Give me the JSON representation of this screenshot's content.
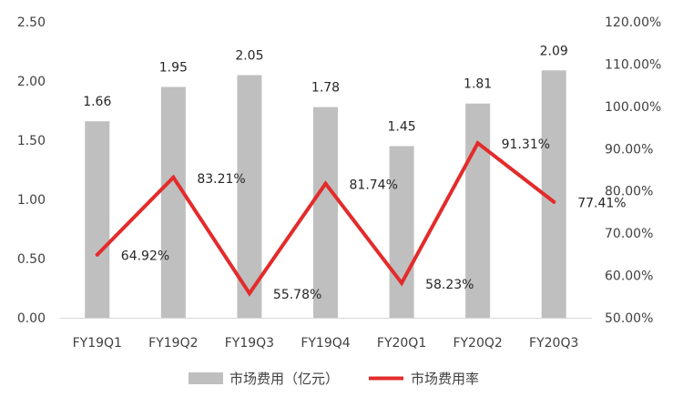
{
  "chart_data": {
    "type": "bar",
    "categories": [
      "FY19Q1",
      "FY19Q2",
      "FY19Q3",
      "FY19Q4",
      "FY20Q1",
      "FY20Q2",
      "FY20Q3"
    ],
    "series": [
      {
        "name": "市场费用（亿元）",
        "type": "bar",
        "axis": "left",
        "values": [
          1.66,
          1.95,
          2.05,
          1.78,
          1.45,
          1.81,
          2.09
        ],
        "labels": [
          "1.66",
          "1.95",
          "2.05",
          "1.78",
          "1.45",
          "1.81",
          "2.09"
        ],
        "color": "#bfbfbf"
      },
      {
        "name": "市场费用率",
        "type": "line",
        "axis": "right",
        "values": [
          64.92,
          83.21,
          55.78,
          81.74,
          58.23,
          91.31,
          77.41
        ],
        "labels": [
          "64.92%",
          "83.21%",
          "55.78%",
          "81.74%",
          "58.23%",
          "91.31%",
          "77.41%"
        ],
        "color": "#e32b2b"
      }
    ],
    "y_left": {
      "range": [
        0,
        2.5
      ],
      "ticks": [
        0,
        0.5,
        1.0,
        1.5,
        2.0,
        2.5
      ],
      "tick_labels": [
        "0.00",
        "0.50",
        "1.00",
        "1.50",
        "2.00",
        "2.50"
      ]
    },
    "y_right": {
      "range": [
        50,
        120
      ],
      "ticks": [
        50,
        60,
        70,
        80,
        90,
        100,
        110,
        120
      ],
      "tick_labels": [
        "50.00%",
        "60.00%",
        "70.00%",
        "80.00%",
        "90.00%",
        "100.00%",
        "110.00%",
        "120.00%"
      ]
    },
    "grid": false,
    "legend": "bottom-center",
    "title": "",
    "xlabel": "",
    "ylabel": ""
  }
}
